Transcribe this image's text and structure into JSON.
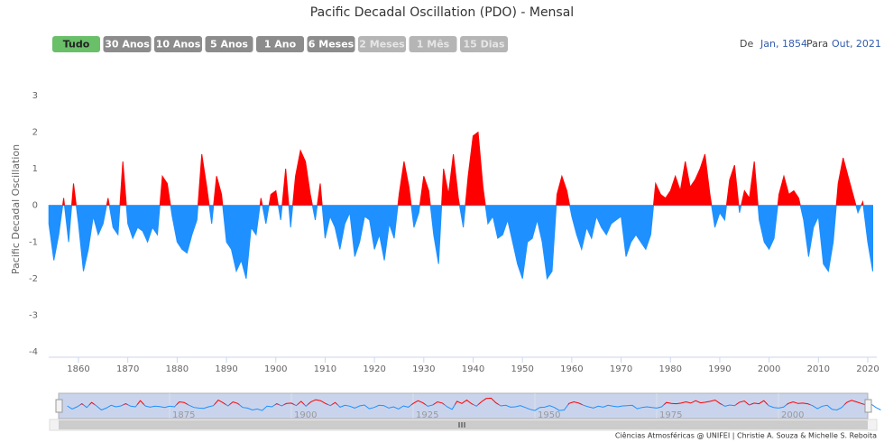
{
  "chart_data": {
    "type": "area",
    "title": "Pacific Decadal Oscillation (PDO) - Mensal",
    "range_buttons": [
      {
        "label": "Tudo",
        "state": "selected"
      },
      {
        "label": "30 Anos",
        "state": "enabled"
      },
      {
        "label": "10 Anos",
        "state": "enabled"
      },
      {
        "label": "5 Anos",
        "state": "enabled"
      },
      {
        "label": "1 Ano",
        "state": "enabled"
      },
      {
        "label": "6 Meses",
        "state": "enabled"
      },
      {
        "label": "2 Meses",
        "state": "disabled"
      },
      {
        "label": "1 Mês",
        "state": "disabled"
      },
      {
        "label": "15 Dias",
        "state": "disabled"
      }
    ],
    "range_from_label": "De",
    "range_from": "Jan, 1854",
    "range_to_label": "Para",
    "range_to": "Out, 2021",
    "y_label": "Pacific Decadal Oscillation",
    "credits": "Ciências Atmosféricas @ UNIFEI | Christie A. Souza & Michelle S. Reboita",
    "threshold": 0,
    "color": "#ff0000",
    "negative_color": "#1e90ff",
    "grid": false,
    "xlim": [
      1854,
      2021.75
    ],
    "xticks": [
      1860,
      1870,
      1880,
      1890,
      1900,
      1910,
      1920,
      1930,
      1940,
      1950,
      1960,
      1970,
      1980,
      1990,
      2000,
      2010,
      2020
    ],
    "navigator_xticks": [
      1875,
      1900,
      1925,
      1950,
      1975,
      2000
    ],
    "ylim": [
      -4,
      3
    ],
    "yticks": [
      -4,
      -3,
      -2,
      -1,
      0,
      1,
      2,
      3
    ],
    "x": [
      1854,
      1855,
      1856,
      1857,
      1858,
      1859,
      1860,
      1861,
      1862,
      1863,
      1864,
      1865,
      1866,
      1867,
      1868,
      1869,
      1870,
      1871,
      1872,
      1873,
      1874,
      1875,
      1876,
      1877,
      1878,
      1879,
      1880,
      1881,
      1882,
      1883,
      1884,
      1885,
      1886,
      1887,
      1888,
      1889,
      1890,
      1891,
      1892,
      1893,
      1894,
      1895,
      1896,
      1897,
      1898,
      1899,
      1900,
      1901,
      1902,
      1903,
      1904,
      1905,
      1906,
      1907,
      1908,
      1909,
      1910,
      1911,
      1912,
      1913,
      1914,
      1915,
      1916,
      1917,
      1918,
      1919,
      1920,
      1921,
      1922,
      1923,
      1924,
      1925,
      1926,
      1927,
      1928,
      1929,
      1930,
      1931,
      1932,
      1933,
      1934,
      1935,
      1936,
      1937,
      1938,
      1939,
      1940,
      1941,
      1942,
      1943,
      1944,
      1945,
      1946,
      1947,
      1948,
      1949,
      1950,
      1951,
      1952,
      1953,
      1954,
      1955,
      1956,
      1957,
      1958,
      1959,
      1960,
      1961,
      1962,
      1963,
      1964,
      1965,
      1966,
      1967,
      1968,
      1969,
      1970,
      1971,
      1972,
      1973,
      1974,
      1975,
      1976,
      1977,
      1978,
      1979,
      1980,
      1981,
      1982,
      1983,
      1984,
      1985,
      1986,
      1987,
      1988,
      1989,
      1990,
      1991,
      1992,
      1993,
      1994,
      1995,
      1996,
      1997,
      1998,
      1999,
      2000,
      2001,
      2002,
      2003,
      2004,
      2005,
      2006,
      2007,
      2008,
      2009,
      2010,
      2011,
      2012,
      2013,
      2014,
      2015,
      2016,
      2017,
      2018,
      2019,
      2020,
      2021
    ],
    "values": [
      -0.5,
      -1.5,
      -0.8,
      0.2,
      -1.0,
      0.6,
      -0.5,
      -1.8,
      -1.2,
      -0.3,
      -0.8,
      -0.5,
      0.2,
      -0.6,
      -0.8,
      1.2,
      -0.5,
      -0.9,
      -0.6,
      -0.7,
      -1.0,
      -0.6,
      -0.8,
      0.8,
      0.6,
      -0.3,
      -1.0,
      -1.2,
      -1.3,
      -0.8,
      -0.4,
      1.4,
      0.5,
      -0.5,
      0.8,
      0.3,
      -1.0,
      -1.2,
      -1.8,
      -1.5,
      -2.0,
      -0.6,
      -0.8,
      0.2,
      -0.5,
      0.3,
      0.4,
      -0.4,
      1.0,
      -0.6,
      0.8,
      1.5,
      1.2,
      0.3,
      -0.4,
      0.6,
      -0.9,
      -0.3,
      -0.6,
      -1.2,
      -0.5,
      -0.2,
      -1.4,
      -1.0,
      -0.3,
      -0.4,
      -1.2,
      -0.8,
      -1.5,
      -0.5,
      -0.9,
      0.3,
      1.2,
      0.5,
      -0.6,
      -0.2,
      0.8,
      0.4,
      -0.8,
      -1.6,
      1.0,
      0.3,
      1.4,
      0.2,
      -0.6,
      0.8,
      1.9,
      2.0,
      0.5,
      -0.5,
      -0.3,
      -0.9,
      -0.8,
      -0.4,
      -1.0,
      -1.6,
      -2.0,
      -1.0,
      -0.9,
      -0.4,
      -1.0,
      -2.0,
      -1.8,
      0.3,
      0.8,
      0.4,
      -0.3,
      -0.8,
      -1.2,
      -0.6,
      -0.9,
      -0.3,
      -0.6,
      -0.8,
      -0.5,
      -0.4,
      -0.3,
      -1.4,
      -1.0,
      -0.8,
      -1.0,
      -1.2,
      -0.8,
      0.6,
      0.3,
      0.2,
      0.4,
      0.8,
      0.4,
      1.2,
      0.5,
      0.7,
      1.0,
      1.4,
      0.3,
      -0.6,
      -0.2,
      -0.4,
      0.7,
      1.1,
      -0.2,
      0.4,
      0.2,
      1.2,
      -0.4,
      -1.0,
      -1.2,
      -0.9,
      0.3,
      0.8,
      0.3,
      0.4,
      0.2,
      -0.4,
      -1.4,
      -0.6,
      -0.3,
      -1.6,
      -1.8,
      -1.0,
      0.6,
      1.3,
      0.8,
      0.3,
      -0.2,
      0.1,
      -1.0,
      -1.8
    ]
  }
}
